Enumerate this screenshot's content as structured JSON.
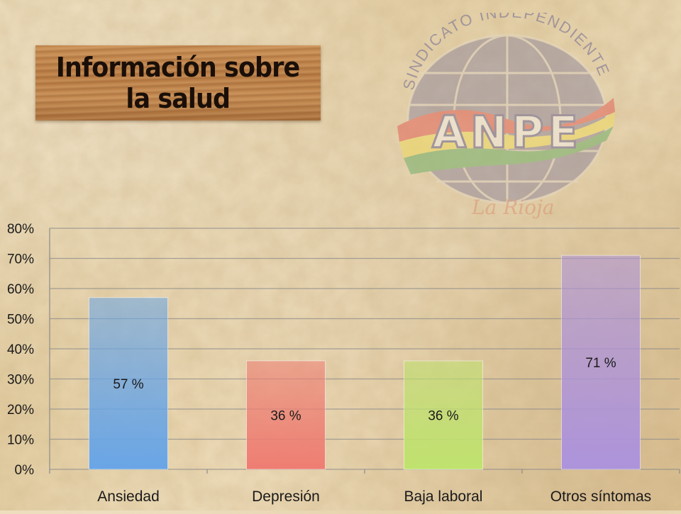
{
  "title": {
    "line1": "Información sobre",
    "line2": "la salud"
  },
  "logo": {
    "arc_text": "SINDICATO INDEPENDIENTE",
    "name": "ANPE",
    "signature": "La Rioja",
    "colors": {
      "red": "#d9342b",
      "yellow": "#f3d43a",
      "green": "#3f9a3c",
      "globe": "#6f6a8a"
    }
  },
  "chart_data": {
    "type": "bar",
    "categories": [
      "Ansiedad",
      "Depresión",
      "Baja laboral",
      "Otros síntomas"
    ],
    "values": [
      57,
      36,
      36,
      71
    ],
    "data_labels": [
      "57 %",
      "36 %",
      "36 %",
      "71 %"
    ],
    "ylim": [
      0,
      80
    ],
    "yticks": [
      0,
      10,
      20,
      30,
      40,
      50,
      60,
      70,
      80
    ],
    "ytick_labels": [
      "0%",
      "10%",
      "20%",
      "30%",
      "40%",
      "50%",
      "60%",
      "70%",
      "80%"
    ],
    "grid": true,
    "legend": "none",
    "colors": [
      "#69a5e6",
      "#ee7d72",
      "#bfe26e",
      "#ad93db"
    ]
  }
}
